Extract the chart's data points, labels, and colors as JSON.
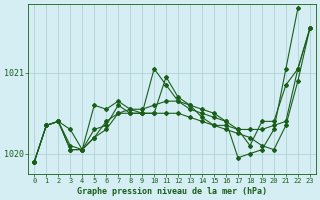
{
  "title": "Graphe pression niveau de la mer (hPa)",
  "bg_color": "#d4eef4",
  "grid_color": "#aacccc",
  "line_color": "#1a5e1a",
  "xlim": [
    -0.5,
    23.5
  ],
  "ylim": [
    1019.75,
    1021.85
  ],
  "yticks": [
    1020,
    1021
  ],
  "xticks": [
    0,
    1,
    2,
    3,
    4,
    5,
    6,
    7,
    8,
    9,
    10,
    11,
    12,
    13,
    14,
    15,
    16,
    17,
    18,
    19,
    20,
    21,
    22,
    23
  ],
  "series": [
    {
      "x": [
        0,
        1,
        2,
        3,
        4,
        5,
        6,
        7,
        8,
        9,
        10,
        11,
        12,
        13,
        14,
        15,
        16,
        17,
        18,
        19,
        20,
        21,
        22,
        23
      ],
      "y": [
        1019.9,
        1020.35,
        1020.4,
        1020.3,
        1020.05,
        1020.3,
        1020.35,
        1020.6,
        1020.5,
        1020.5,
        1020.5,
        1020.95,
        1020.7,
        1020.6,
        1020.45,
        1020.35,
        1020.35,
        1020.3,
        1020.3,
        1020.3,
        1020.35,
        1020.4,
        1021.05,
        1021.55
      ]
    },
    {
      "x": [
        0,
        1,
        2,
        3,
        4,
        5,
        6,
        7,
        8,
        9,
        10,
        11,
        12,
        13,
        14,
        15,
        16,
        17,
        18,
        19,
        20,
        21,
        22
      ],
      "y": [
        1019.9,
        1020.35,
        1020.4,
        1020.05,
        1020.05,
        1020.6,
        1020.55,
        1020.65,
        1020.55,
        1020.5,
        1021.05,
        1020.85,
        1020.65,
        1020.55,
        1020.5,
        1020.45,
        1020.4,
        1019.95,
        1020.0,
        1020.05,
        1020.3,
        1021.05,
        1021.8
      ]
    },
    {
      "x": [
        0,
        1,
        2,
        3,
        4,
        5,
        6,
        7,
        8,
        9,
        10,
        11,
        12,
        13,
        14,
        15,
        16,
        17,
        18,
        19,
        20,
        21,
        22,
        23
      ],
      "y": [
        1019.9,
        1020.35,
        1020.4,
        1020.1,
        1020.05,
        1020.2,
        1020.4,
        1020.5,
        1020.55,
        1020.55,
        1020.6,
        1020.65,
        1020.65,
        1020.6,
        1020.55,
        1020.5,
        1020.4,
        1020.3,
        1020.1,
        1020.4,
        1020.4,
        1020.85,
        1021.05,
        1021.55
      ]
    },
    {
      "x": [
        0,
        1,
        2,
        3,
        4,
        5,
        6,
        7,
        8,
        9,
        10,
        11,
        12,
        13,
        14,
        15,
        16,
        17,
        18,
        19,
        20,
        21,
        22,
        23
      ],
      "y": [
        1019.9,
        1020.35,
        1020.4,
        1020.05,
        1020.05,
        1020.2,
        1020.3,
        1020.5,
        1020.5,
        1020.5,
        1020.5,
        1020.5,
        1020.5,
        1020.45,
        1020.4,
        1020.35,
        1020.3,
        1020.25,
        1020.2,
        1020.1,
        1020.05,
        1020.35,
        1020.9,
        1021.55
      ]
    }
  ]
}
